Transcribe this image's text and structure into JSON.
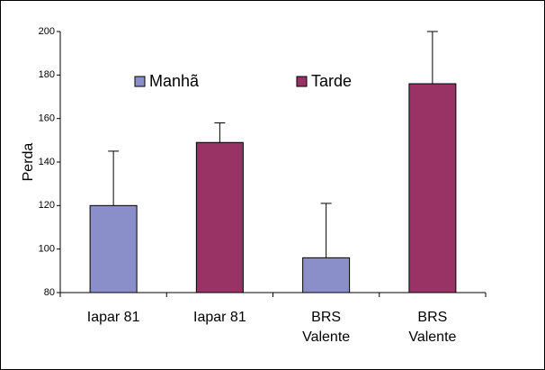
{
  "chart_data": {
    "type": "bar",
    "y_label": "Perda",
    "categories": [
      "Iapar 81",
      "Iapar 81",
      "BRS Valente",
      "BRS Valente"
    ],
    "series": [
      {
        "name": "Manhã",
        "color": "#8b8fc9",
        "values": [
          120,
          null,
          96,
          null
        ],
        "errors": [
          25,
          null,
          25,
          null
        ]
      },
      {
        "name": "Tarde",
        "color": "#993366",
        "values": [
          null,
          149,
          null,
          176
        ],
        "errors": [
          null,
          9,
          null,
          24
        ]
      }
    ],
    "ylim": [
      80,
      200
    ],
    "yticks": [
      80,
      100,
      120,
      140,
      160,
      180,
      200
    ],
    "grid": false,
    "legend": "top"
  }
}
